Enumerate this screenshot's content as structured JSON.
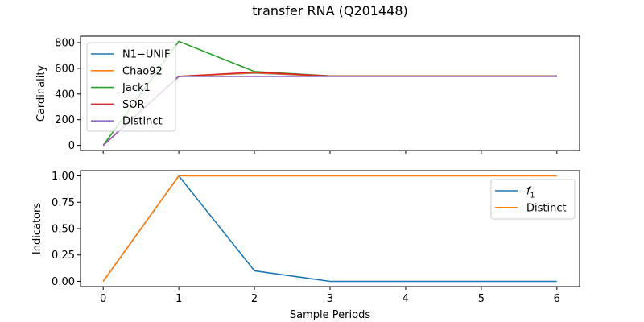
{
  "title": "transfer RNA (Q201448)",
  "chart_data": [
    {
      "type": "line",
      "ylabel": "Cardinality",
      "xlabel": "",
      "x": [
        0,
        1,
        2,
        3,
        4,
        5,
        6
      ],
      "xlim": [
        -0.3,
        6.3
      ],
      "ylim": [
        -40,
        850
      ],
      "yticks": [
        0,
        200,
        400,
        600,
        800
      ],
      "yticklabels": [
        "0",
        "200",
        "400",
        "600",
        "800"
      ],
      "xtick_labels_shown": false,
      "legend_position": "top-left",
      "series": [
        {
          "name": "N1−UNIF",
          "color": "#1f77b4",
          "values": [
            0,
            537,
            563,
            540,
            540,
            540,
            540
          ]
        },
        {
          "name": "Chao92",
          "color": "#ff7f0e",
          "values": [
            0,
            537,
            565,
            540,
            540,
            540,
            540
          ]
        },
        {
          "name": "Jack1",
          "color": "#2ca02c",
          "values": [
            0,
            810,
            575,
            541,
            541,
            541,
            541
          ]
        },
        {
          "name": "SOR",
          "color": "#d62728",
          "values": [
            0,
            537,
            570,
            540,
            540,
            540,
            540
          ]
        },
        {
          "name": "Distinct",
          "color": "#9467bd",
          "values": [
            0,
            537,
            537,
            537,
            537,
            537,
            537
          ]
        }
      ]
    },
    {
      "type": "line",
      "ylabel": "Indicators",
      "xlabel": "Sample Periods",
      "x": [
        0,
        1,
        2,
        3,
        4,
        5,
        6
      ],
      "xlim": [
        -0.3,
        6.3
      ],
      "ylim": [
        -0.05,
        1.05
      ],
      "yticks": [
        0,
        0.25,
        0.5,
        0.75,
        1
      ],
      "yticklabels": [
        "0.00",
        "0.25",
        "0.50",
        "0.75",
        "1.00"
      ],
      "xticks": [
        0,
        1,
        2,
        3,
        4,
        5,
        6
      ],
      "xticklabels": [
        "0",
        "1",
        "2",
        "3",
        "4",
        "5",
        "6"
      ],
      "legend_position": "top-right",
      "series": [
        {
          "name": "f1",
          "label_base": "f",
          "label_sub": "1",
          "color": "#1f77b4",
          "values": [
            0,
            1.0,
            0.1,
            0.0,
            0.0,
            0.0,
            0.0
          ]
        },
        {
          "name": "Distinct",
          "color": "#ff7f0e",
          "values": [
            0,
            1.0,
            1.0,
            1.0,
            1.0,
            1.0,
            1.0
          ]
        }
      ]
    }
  ]
}
